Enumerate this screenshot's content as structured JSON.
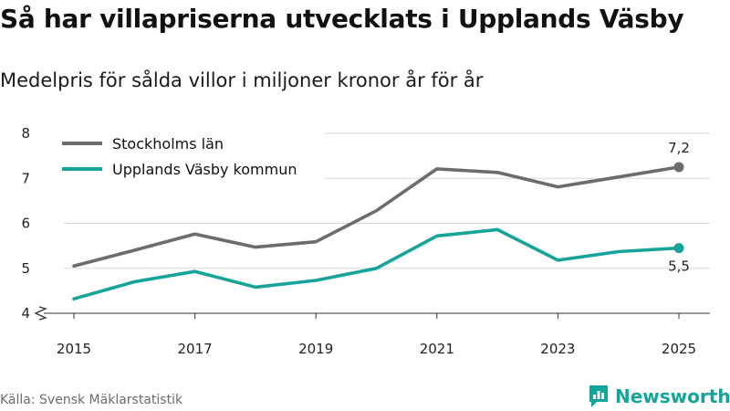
{
  "title": "Så har villapriserna utvecklats i Upplands Väsby",
  "subtitle": "Medelpris för sålda villor i miljoner kronor år för år",
  "source": "Källa: Svensk Mäklarstatistik",
  "brand": {
    "name": "Newsworthy",
    "logo_icon": "newsworthy-logo-icon",
    "color": "#16a49a"
  },
  "chart_data": {
    "type": "line",
    "title": "Så har villapriserna utvecklats i Upplands Väsby",
    "subtitle": "Medelpris för sålda villor i miljoner kronor år för år",
    "xlabel": "",
    "ylabel": "",
    "x": [
      2015,
      2016,
      2017,
      2018,
      2019,
      2020,
      2021,
      2022,
      2023,
      2024,
      2025
    ],
    "x_tick_labels": [
      "2015",
      "2017",
      "2019",
      "2021",
      "2023",
      "2025"
    ],
    "y_tick_labels": [
      "4",
      "5",
      "6",
      "7",
      "8"
    ],
    "xlim": [
      2015,
      2025
    ],
    "ylim": [
      4,
      8
    ],
    "y_axis_break": true,
    "grid": "horizontal",
    "legend_position": "top-left",
    "series": [
      {
        "name": "Stockholms län",
        "color": "#6c6b70",
        "values": [
          5.05,
          5.4,
          5.76,
          5.47,
          5.59,
          6.28,
          7.21,
          7.13,
          6.81,
          7.03,
          7.25
        ],
        "end_label": "7,2"
      },
      {
        "name": "Upplands Väsby kommun",
        "color": "#16a49a",
        "values": [
          4.32,
          4.7,
          4.93,
          4.58,
          4.73,
          5.0,
          5.72,
          5.86,
          5.18,
          5.37,
          5.45
        ],
        "end_label": "5,5"
      }
    ]
  }
}
